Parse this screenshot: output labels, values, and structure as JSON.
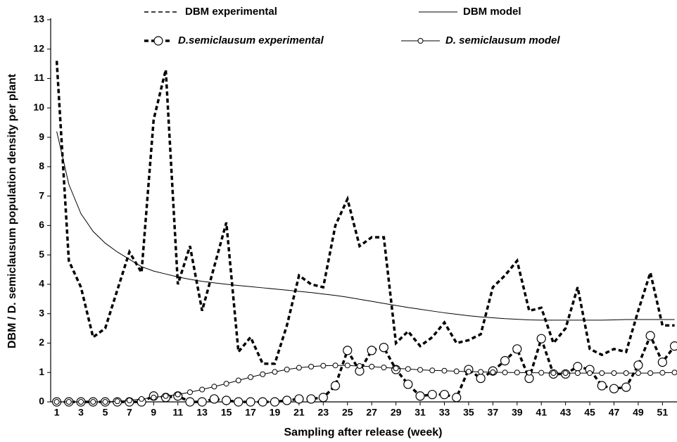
{
  "chart_data": {
    "type": "line",
    "x_label": "Sampling after release (week)",
    "y_label": "DBM / D. semiclausum population density per plant",
    "x": [
      1,
      2,
      3,
      4,
      5,
      6,
      7,
      8,
      9,
      10,
      11,
      12,
      13,
      14,
      15,
      16,
      17,
      18,
      19,
      20,
      21,
      22,
      23,
      24,
      25,
      26,
      27,
      28,
      29,
      30,
      31,
      32,
      33,
      34,
      35,
      36,
      37,
      38,
      39,
      40,
      41,
      42,
      43,
      44,
      45,
      46,
      47,
      48,
      49,
      50,
      51,
      52
    ],
    "xlim": [
      0.5,
      52.2
    ],
    "xticks": [
      1,
      3,
      5,
      7,
      9,
      11,
      13,
      15,
      17,
      19,
      21,
      23,
      25,
      27,
      29,
      31,
      33,
      35,
      37,
      39,
      41,
      43,
      45,
      47,
      49,
      51
    ],
    "ylim": [
      0,
      13
    ],
    "yticks": [
      0,
      1,
      2,
      3,
      4,
      5,
      6,
      7,
      8,
      9,
      10,
      11,
      12,
      13
    ],
    "series": [
      {
        "name": "DBM experimental",
        "color": "#000000",
        "style": "dashed",
        "marker": "none",
        "values": [
          11.6,
          4.8,
          3.9,
          2.2,
          2.5,
          3.8,
          5.1,
          4.4,
          9.6,
          11.3,
          4.0,
          5.3,
          3.1,
          4.6,
          6.1,
          1.7,
          2.2,
          1.3,
          1.3,
          2.6,
          4.3,
          4.0,
          3.9,
          6.0,
          6.9,
          5.3,
          5.6,
          5.6,
          2.0,
          2.4,
          1.9,
          2.2,
          2.7,
          2.0,
          2.1,
          2.3,
          3.9,
          4.3,
          4.8,
          3.1,
          3.2,
          2.0,
          2.5,
          3.9,
          1.8,
          1.6,
          1.8,
          1.7,
          3.1,
          4.4,
          2.6,
          2.6
        ]
      },
      {
        "name": "DBM model",
        "color": "#000000",
        "style": "solid",
        "marker": "none",
        "values": [
          9.2,
          7.4,
          6.4,
          5.8,
          5.4,
          5.1,
          4.85,
          4.6,
          4.45,
          4.35,
          4.25,
          4.17,
          4.1,
          4.05,
          4.0,
          3.96,
          3.92,
          3.88,
          3.84,
          3.8,
          3.76,
          3.72,
          3.67,
          3.62,
          3.56,
          3.49,
          3.42,
          3.35,
          3.28,
          3.21,
          3.15,
          3.09,
          3.03,
          2.98,
          2.93,
          2.89,
          2.86,
          2.83,
          2.81,
          2.79,
          2.78,
          2.78,
          2.78,
          2.78,
          2.78,
          2.78,
          2.79,
          2.8,
          2.8,
          2.8,
          2.8,
          2.8
        ]
      },
      {
        "name": "D.semiclausum experimental",
        "color": "#000000",
        "style": "dashed",
        "marker": "large-circle",
        "values": [
          0,
          0,
          0,
          0,
          0,
          0,
          0,
          0,
          0.2,
          0.15,
          0.2,
          0,
          0,
          0.1,
          0.05,
          0,
          0,
          0,
          0,
          0.05,
          0.1,
          0.1,
          0.15,
          0.55,
          1.75,
          1.05,
          1.75,
          1.85,
          1.1,
          0.6,
          0.2,
          0.25,
          0.25,
          0.15,
          1.1,
          0.8,
          1.05,
          1.4,
          1.8,
          0.8,
          2.15,
          0.95,
          0.95,
          1.2,
          1.1,
          0.55,
          0.45,
          0.5,
          1.25,
          2.25,
          1.35,
          1.9
        ]
      },
      {
        "name": "D. semiclausum model",
        "color": "#000000",
        "style": "solid",
        "marker": "small-circle",
        "values": [
          0,
          0,
          0,
          0,
          0,
          0.02,
          0.05,
          0.1,
          0.15,
          0.2,
          0.25,
          0.33,
          0.42,
          0.52,
          0.62,
          0.73,
          0.84,
          0.94,
          1.02,
          1.1,
          1.16,
          1.2,
          1.23,
          1.24,
          1.24,
          1.22,
          1.2,
          1.17,
          1.14,
          1.12,
          1.09,
          1.07,
          1.06,
          1.04,
          1.03,
          1.02,
          1.01,
          1.0,
          1.0,
          0.99,
          0.99,
          0.98,
          0.98,
          0.98,
          0.98,
          0.98,
          0.98,
          0.98,
          0.98,
          0.98,
          0.99,
          1.0
        ]
      }
    ]
  }
}
